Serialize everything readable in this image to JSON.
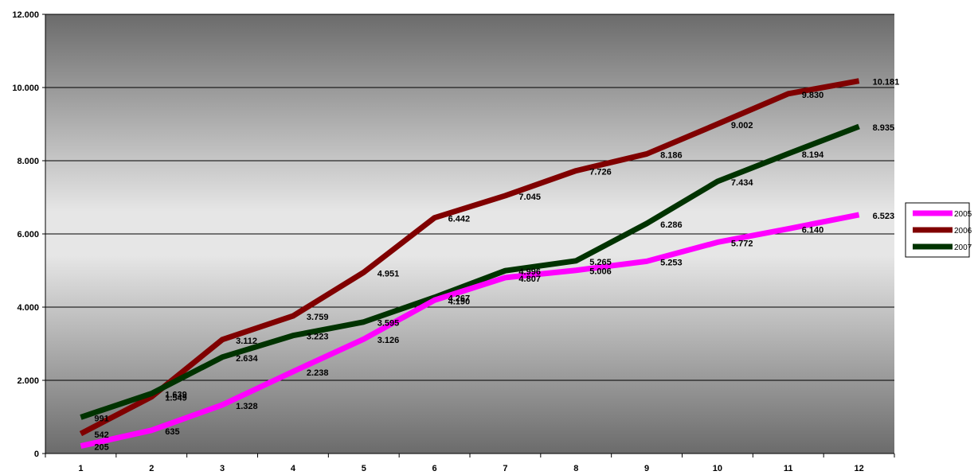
{
  "chart_data": {
    "type": "line",
    "title": "",
    "xlabel": "",
    "ylabel": "",
    "categories": [
      "1",
      "2",
      "3",
      "4",
      "5",
      "6",
      "7",
      "8",
      "9",
      "10",
      "11",
      "12"
    ],
    "ylim": [
      0,
      12000
    ],
    "y_ticks": [
      {
        "value": 0,
        "label": "0"
      },
      {
        "value": 2000,
        "label": "2.000"
      },
      {
        "value": 4000,
        "label": "4.000"
      },
      {
        "value": 6000,
        "label": "6.000"
      },
      {
        "value": 8000,
        "label": "8.000"
      },
      {
        "value": 10000,
        "label": "10.000"
      },
      {
        "value": 12000,
        "label": "12.000"
      }
    ],
    "grid": true,
    "legend_position": "right",
    "series": [
      {
        "name": "2005",
        "color": "#ff00ff",
        "values": [
          205,
          635,
          1328,
          2238,
          3126,
          4190,
          4807,
          5006,
          5253,
          5772,
          6140,
          6523
        ],
        "labels": [
          "205",
          "635",
          "1.328",
          "2.238",
          "3.126",
          "4.190",
          "4.807",
          "5.006",
          "5.253",
          "5.772",
          "6.140",
          "6.523"
        ]
      },
      {
        "name": "2006",
        "color": "#800000",
        "values": [
          542,
          1549,
          3112,
          3759,
          4951,
          6442,
          7045,
          7726,
          8186,
          9002,
          9830,
          10181
        ],
        "labels": [
          "542",
          "1.549",
          "3.112",
          "3.759",
          "4.951",
          "6.442",
          "7.045",
          "7.726",
          "8.186",
          "9.002",
          "9.830",
          "10.181"
        ]
      },
      {
        "name": "2007",
        "color": "#003300",
        "values": [
          991,
          1639,
          2634,
          3223,
          3595,
          4267,
          4996,
          5265,
          6286,
          7434,
          8194,
          8935
        ],
        "labels": [
          "991",
          "1.639",
          "2.634",
          "3.223",
          "3.595",
          "4.267",
          "4.996",
          "5.265",
          "6.286",
          "7.434",
          "8.194",
          "8.935"
        ]
      }
    ]
  }
}
